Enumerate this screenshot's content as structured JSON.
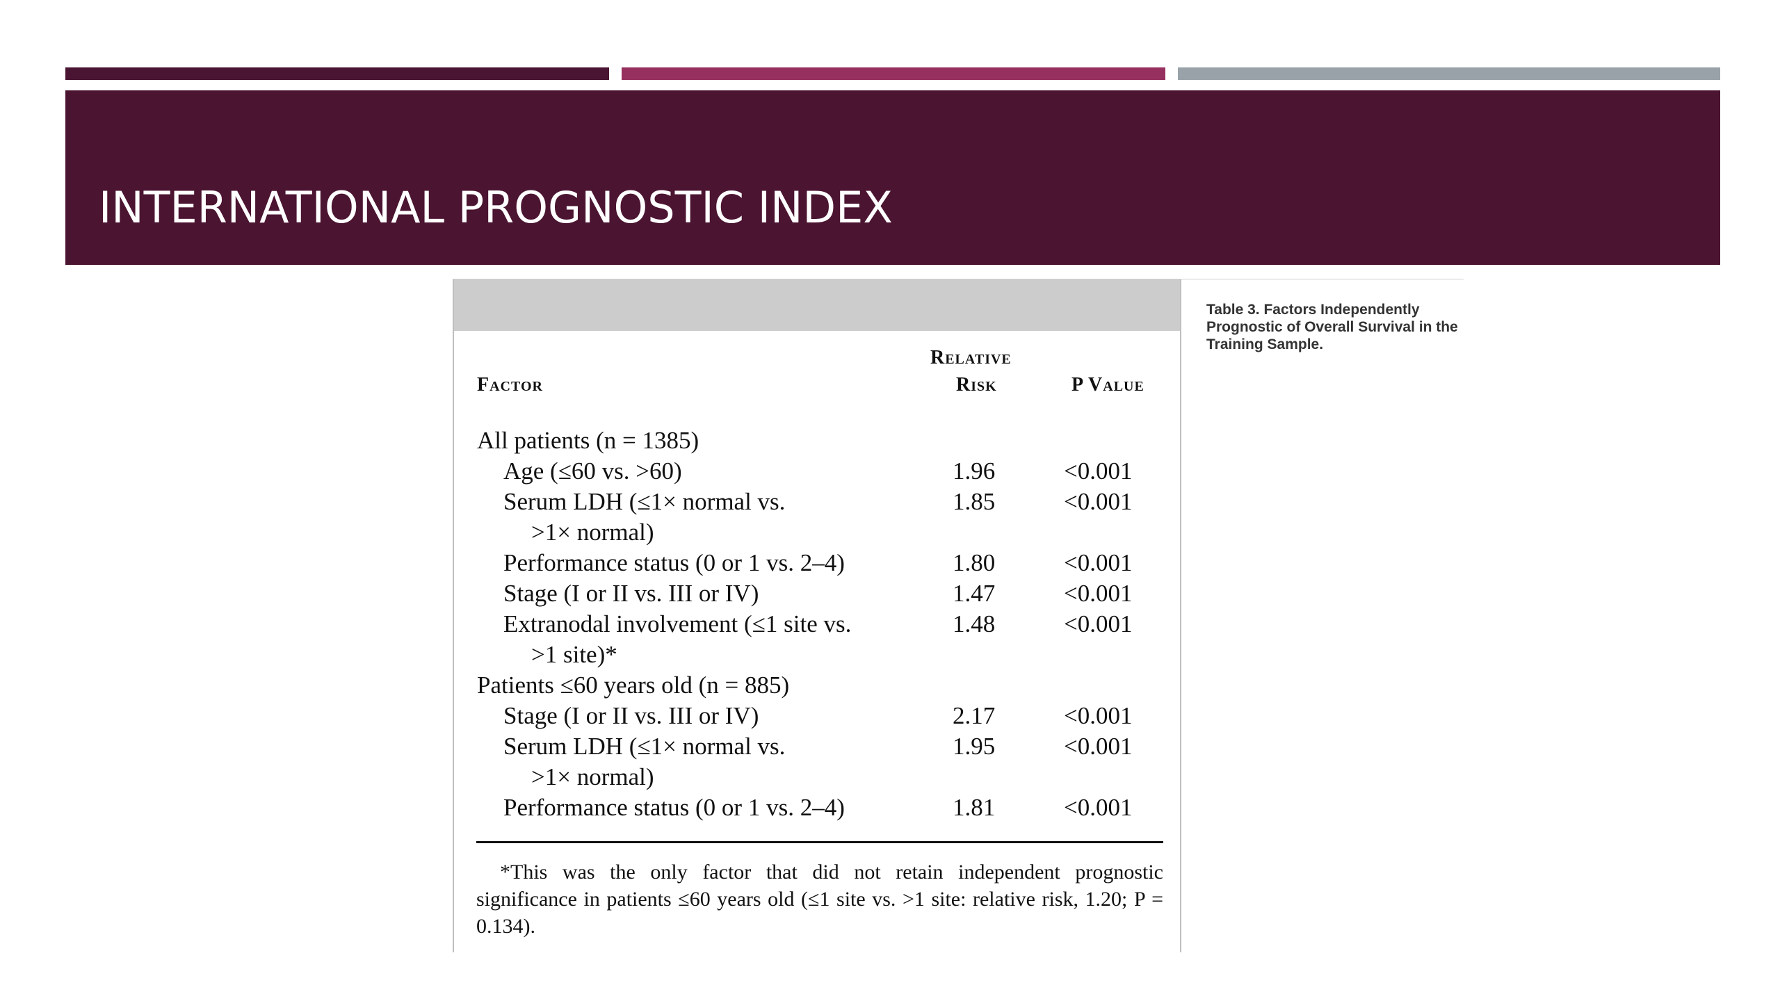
{
  "slide": {
    "title": "INTERNATIONAL PROGNOSTIC INDEX",
    "colors": {
      "title_band": "#4b1431",
      "bar1": "#4a1532",
      "bar2": "#96305e",
      "bar3": "#98a2a8"
    }
  },
  "table": {
    "headers": {
      "factor": "Factor",
      "relative_risk_line1": "Relative",
      "relative_risk_line2": "Risk",
      "p_value": "P Value"
    },
    "rows": [
      {
        "factor": "All patients (n = 1385)",
        "rr": "",
        "p": ""
      },
      {
        "factor": "Age (≤60 vs. >60)",
        "rr": "1.96",
        "p": "<0.001"
      },
      {
        "factor": "Serum LDH (≤1× normal vs.",
        "rr": "1.85",
        "p": "<0.001"
      },
      {
        "factor": ">1× normal)",
        "rr": "",
        "p": ""
      },
      {
        "factor": "Performance status (0 or 1 vs. 2–4)",
        "rr": "1.80",
        "p": "<0.001"
      },
      {
        "factor": "Stage (I or II vs. III or IV)",
        "rr": "1.47",
        "p": "<0.001"
      },
      {
        "factor": "Extranodal involvement (≤1 site vs.",
        "rr": "1.48",
        "p": "<0.001"
      },
      {
        "factor": ">1 site)*",
        "rr": "",
        "p": ""
      },
      {
        "factor": "Patients ≤60 years old (n = 885)",
        "rr": "",
        "p": ""
      },
      {
        "factor": "Stage (I or II vs. III or IV)",
        "rr": "2.17",
        "p": "<0.001"
      },
      {
        "factor": "Serum LDH (≤1× normal vs.",
        "rr": "1.95",
        "p": "<0.001"
      },
      {
        "factor": ">1× normal)",
        "rr": "",
        "p": ""
      },
      {
        "factor": "Performance status (0 or 1 vs. 2–4)",
        "rr": "1.81",
        "p": "<0.001"
      }
    ],
    "footnote": "*This was the only factor that did not retain independent prognostic significance in patients ≤60 years old (≤1 site vs. >1 site: relative risk, 1.20; P = 0.134)."
  },
  "caption": "Table 3. Factors Independently Prognostic of Overall Survival in the Training Sample."
}
